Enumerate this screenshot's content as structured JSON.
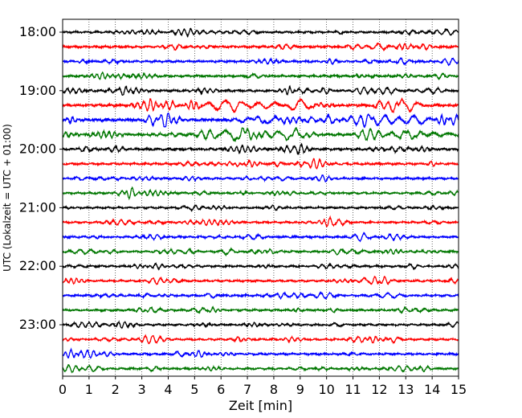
{
  "chart_data": {
    "type": "line",
    "subtype": "helicorder",
    "title": "",
    "xlabel": "Zeit  [min]",
    "ylabel": "UTC (Lokalzeit = UTC + 01:00)",
    "xlim": [
      0,
      15
    ],
    "x_ticks": [
      "0",
      "1",
      "2",
      "3",
      "4",
      "5",
      "6",
      "7",
      "8",
      "9",
      "10",
      "11",
      "12",
      "13",
      "14",
      "15"
    ],
    "y_tick_labels": [
      "18:00",
      "19:00",
      "20:00",
      "21:00",
      "22:00",
      "23:00"
    ],
    "grid": "vertical dotted lines at each minute",
    "trace_colors": [
      "#000000",
      "#ff0000",
      "#0000ff",
      "#007700"
    ],
    "traces": [
      {
        "start": "18:00",
        "color": "#000000",
        "activity": 0.35
      },
      {
        "start": "18:15",
        "color": "#ff0000",
        "activity": 0.45
      },
      {
        "start": "18:30",
        "color": "#0000ff",
        "activity": 0.45
      },
      {
        "start": "18:45",
        "color": "#007700",
        "activity": 0.45
      },
      {
        "start": "19:00",
        "color": "#000000",
        "activity": 0.45
      },
      {
        "start": "19:15",
        "color": "#ff0000",
        "activity": 0.85
      },
      {
        "start": "19:30",
        "color": "#0000ff",
        "activity": 1.0
      },
      {
        "start": "19:45",
        "color": "#007700",
        "activity": 0.8
      },
      {
        "start": "20:00",
        "color": "#000000",
        "activity": 0.6
      },
      {
        "start": "20:15",
        "color": "#ff0000",
        "activity": 0.45
      },
      {
        "start": "20:30",
        "color": "#0000ff",
        "activity": 0.35
      },
      {
        "start": "20:45",
        "color": "#007700",
        "activity": 0.35
      },
      {
        "start": "21:00",
        "color": "#000000",
        "activity": 0.3
      },
      {
        "start": "21:15",
        "color": "#ff0000",
        "activity": 0.35
      },
      {
        "start": "21:30",
        "color": "#0000ff",
        "activity": 0.4
      },
      {
        "start": "21:45",
        "color": "#007700",
        "activity": 0.35
      },
      {
        "start": "22:00",
        "color": "#000000",
        "activity": 0.3
      },
      {
        "start": "22:15",
        "color": "#ff0000",
        "activity": 0.35
      },
      {
        "start": "22:30",
        "color": "#0000ff",
        "activity": 0.35
      },
      {
        "start": "22:45",
        "color": "#007700",
        "activity": 0.4
      },
      {
        "start": "23:00",
        "color": "#000000",
        "activity": 0.3
      },
      {
        "start": "23:15",
        "color": "#ff0000",
        "activity": 0.3
      },
      {
        "start": "23:30",
        "color": "#0000ff",
        "activity": 0.35
      },
      {
        "start": "23:45",
        "color": "#007700",
        "activity": 0.3
      }
    ]
  }
}
